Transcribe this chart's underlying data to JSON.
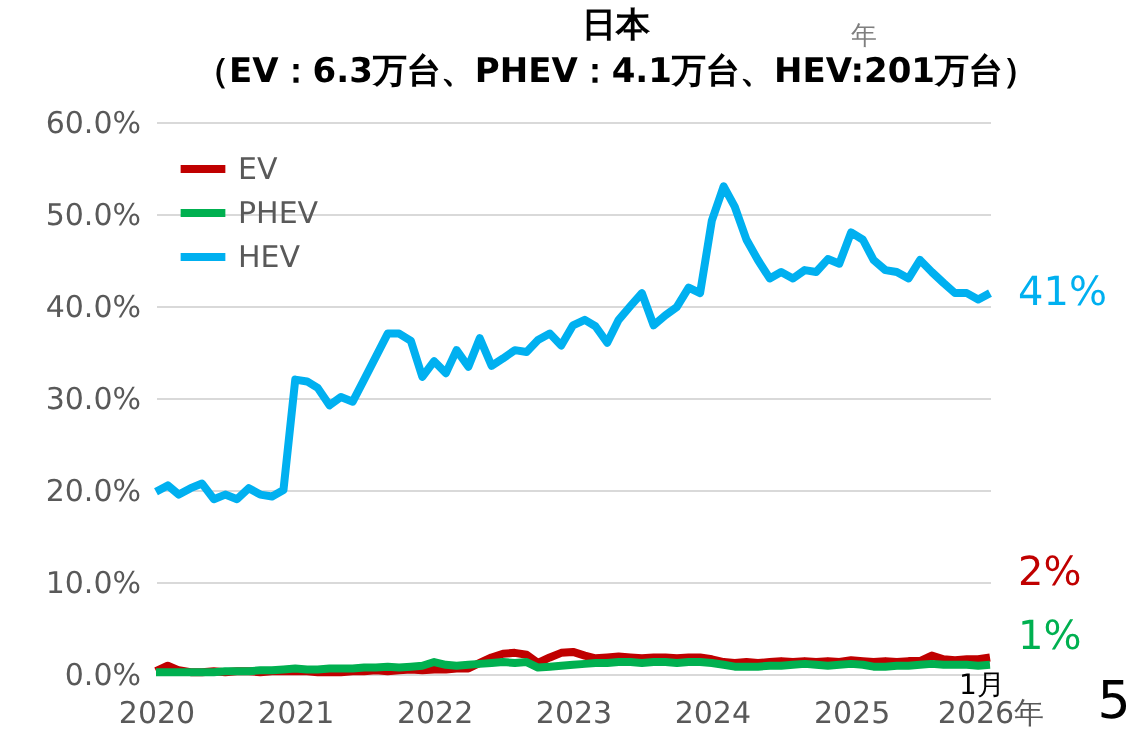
{
  "chart_data": {
    "type": "line",
    "title": "日本",
    "subtitle": "（EV：6.3万台、PHEV：4.1万台、HEV:201万台）",
    "x": [
      "2020-01",
      "2020-02",
      "2020-03",
      "2020-04",
      "2020-05",
      "2020-06",
      "2020-07",
      "2020-08",
      "2020-09",
      "2020-10",
      "2020-11",
      "2020-12",
      "2021-01",
      "2021-02",
      "2021-03",
      "2021-04",
      "2021-05",
      "2021-06",
      "2021-07",
      "2021-08",
      "2021-09",
      "2021-10",
      "2021-11",
      "2021-12",
      "2022-01",
      "2022-02",
      "2022-03",
      "2022-04",
      "2022-05",
      "2022-06",
      "2022-07",
      "2022-08",
      "2022-09",
      "2022-10",
      "2022-11",
      "2022-12",
      "2023-01",
      "2023-02",
      "2023-03",
      "2023-04",
      "2023-05",
      "2023-06",
      "2023-07",
      "2023-08",
      "2023-09",
      "2023-10",
      "2023-11",
      "2023-12",
      "2024-01",
      "2024-02",
      "2024-03",
      "2024-04",
      "2024-05",
      "2024-06",
      "2024-07",
      "2024-08",
      "2024-09",
      "2024-10",
      "2024-11",
      "2024-12",
      "2025-01",
      "2025-02",
      "2025-03",
      "2025-04",
      "2025-05",
      "2025-06",
      "2025-07",
      "2025-08",
      "2025-09",
      "2025-10",
      "2025-11",
      "2025-12",
      "2026-01"
    ],
    "series": [
      {
        "name": "EV",
        "color": "#c00000",
        "values": [
          0.3,
          0.9,
          0.4,
          0.2,
          0.2,
          0.3,
          0.2,
          0.3,
          0.3,
          0.2,
          0.3,
          0.3,
          0.3,
          0.3,
          0.2,
          0.2,
          0.2,
          0.3,
          0.3,
          0.4,
          0.3,
          0.4,
          0.5,
          0.4,
          0.5,
          0.5,
          0.6,
          0.6,
          1.2,
          1.8,
          2.2,
          2.3,
          2.1,
          1.2,
          1.8,
          2.3,
          2.4,
          2.0,
          1.7,
          1.8,
          1.9,
          1.8,
          1.7,
          1.8,
          1.8,
          1.7,
          1.8,
          1.8,
          1.6,
          1.3,
          1.2,
          1.3,
          1.2,
          1.3,
          1.4,
          1.3,
          1.4,
          1.3,
          1.4,
          1.3,
          1.5,
          1.4,
          1.3,
          1.4,
          1.3,
          1.4,
          1.4,
          2.0,
          1.6,
          1.5,
          1.6,
          1.6,
          1.8
        ],
        "value_labels": [
          null,
          null,
          null,
          null,
          null,
          null,
          null,
          null,
          null,
          null,
          null,
          null,
          null,
          null,
          null,
          null,
          null,
          null,
          null,
          null,
          null,
          null,
          null,
          null,
          null,
          null,
          null,
          null,
          null,
          null,
          null,
          null,
          null,
          null,
          null,
          null,
          null,
          null,
          null,
          null,
          null,
          null,
          null,
          null,
          null,
          null,
          null,
          null,
          null,
          null,
          null,
          null,
          null,
          null,
          null,
          null,
          null,
          null,
          null,
          null,
          null,
          null,
          null,
          null,
          null,
          null,
          null,
          null,
          null,
          null,
          null,
          null,
          "2%"
        ]
      },
      {
        "name": "PHEV",
        "color": "#00b050",
        "values": [
          0.2,
          0.2,
          0.2,
          0.2,
          0.2,
          0.2,
          0.3,
          0.3,
          0.3,
          0.4,
          0.4,
          0.5,
          0.6,
          0.5,
          0.5,
          0.6,
          0.6,
          0.6,
          0.7,
          0.7,
          0.8,
          0.7,
          0.8,
          0.9,
          1.3,
          1.0,
          0.9,
          1.0,
          1.1,
          1.2,
          1.3,
          1.2,
          1.3,
          0.7,
          0.8,
          0.9,
          1.0,
          1.1,
          1.2,
          1.2,
          1.3,
          1.3,
          1.2,
          1.3,
          1.3,
          1.2,
          1.3,
          1.3,
          1.2,
          1.0,
          0.8,
          0.8,
          0.8,
          0.9,
          0.9,
          1.0,
          1.1,
          1.0,
          0.9,
          1.0,
          1.1,
          1.0,
          0.8,
          0.8,
          0.9,
          0.9,
          1.0,
          1.1,
          1.0,
          1.0,
          1.0,
          0.9,
          1.0
        ],
        "value_labels": [
          null,
          null,
          null,
          null,
          null,
          null,
          null,
          null,
          null,
          null,
          null,
          null,
          null,
          null,
          null,
          null,
          null,
          null,
          null,
          null,
          null,
          null,
          null,
          null,
          null,
          null,
          null,
          null,
          null,
          null,
          null,
          null,
          null,
          null,
          null,
          null,
          null,
          null,
          null,
          null,
          null,
          null,
          null,
          null,
          null,
          null,
          null,
          null,
          null,
          null,
          null,
          null,
          null,
          null,
          null,
          null,
          null,
          null,
          null,
          null,
          null,
          null,
          null,
          null,
          null,
          null,
          null,
          null,
          null,
          null,
          null,
          null,
          "1%"
        ]
      },
      {
        "name": "HEV",
        "color": "#00b0f0",
        "values": [
          19.8,
          20.5,
          19.5,
          20.2,
          20.7,
          19.0,
          19.5,
          19.0,
          20.2,
          19.5,
          19.3,
          20.0,
          32.0,
          31.8,
          31.1,
          29.2,
          30.1,
          29.6,
          32.0,
          34.5,
          37.0,
          37.0,
          36.2,
          32.3,
          34.0,
          32.7,
          35.2,
          33.4,
          36.5,
          33.5,
          34.3,
          35.2,
          35.0,
          36.3,
          37.0,
          35.7,
          37.9,
          38.5,
          37.8,
          36.0,
          38.5,
          40.0,
          41.4,
          37.9,
          39.0,
          39.9,
          42.0,
          41.4,
          49.3,
          53.0,
          50.8,
          47.2,
          45.0,
          43.0,
          43.7,
          43.0,
          43.9,
          43.7,
          45.1,
          44.6,
          48.0,
          47.2,
          45.0,
          43.9,
          43.7,
          43.0,
          45.0,
          43.7,
          42.5,
          41.4,
          41.4,
          40.7,
          41.4
        ],
        "value_labels": [
          null,
          null,
          null,
          null,
          null,
          null,
          null,
          null,
          null,
          null,
          null,
          null,
          null,
          null,
          null,
          null,
          null,
          null,
          null,
          null,
          null,
          null,
          null,
          null,
          null,
          null,
          null,
          null,
          null,
          null,
          null,
          null,
          null,
          null,
          null,
          null,
          null,
          null,
          null,
          null,
          null,
          null,
          null,
          null,
          null,
          null,
          null,
          null,
          null,
          null,
          null,
          null,
          null,
          null,
          null,
          null,
          null,
          null,
          null,
          null,
          null,
          null,
          null,
          null,
          null,
          null,
          null,
          null,
          null,
          null,
          null,
          null,
          "41%"
        ]
      }
    ],
    "xlim": [
      "2020-01",
      "2026-01"
    ],
    "xticks": [
      {
        "value": "2020-01",
        "label": "2020"
      },
      {
        "value": "2021-01",
        "label": "2021"
      },
      {
        "value": "2022-01",
        "label": "2022"
      },
      {
        "value": "2023-01",
        "label": "2023"
      },
      {
        "value": "2024-01",
        "label": "2024"
      },
      {
        "value": "2025-01",
        "label": "2025"
      },
      {
        "value": "2026-01",
        "label": "2026年"
      }
    ],
    "ylim": [
      0,
      60
    ],
    "yticks": [
      {
        "value": 0,
        "label": "0.0%"
      },
      {
        "value": 10,
        "label": "10.0%"
      },
      {
        "value": 20,
        "label": "20.0%"
      },
      {
        "value": 30,
        "label": "30.0%"
      },
      {
        "value": 40,
        "label": "40.0%"
      },
      {
        "value": 50,
        "label": "50.0%"
      },
      {
        "value": 60,
        "label": "60.0%"
      }
    ],
    "grid": "y",
    "legend": "top left",
    "marker": "none",
    "line_style": "solid",
    "annotations": [
      "1月",
      "年",
      "5"
    ]
  }
}
